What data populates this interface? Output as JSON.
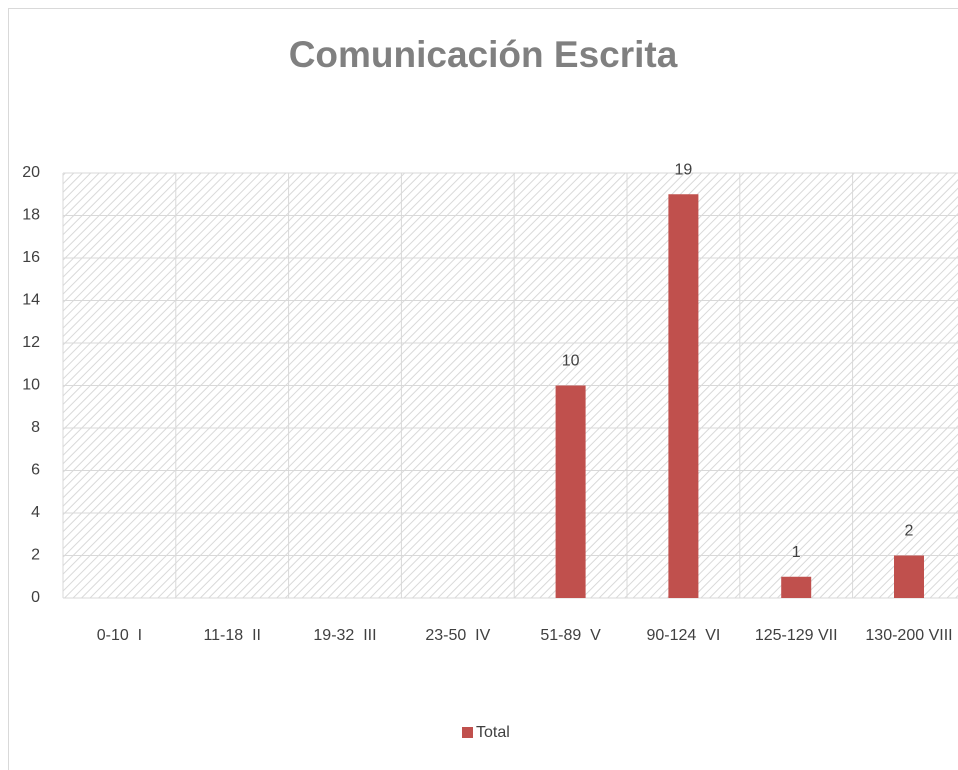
{
  "chart_data": {
    "type": "bar",
    "title": "Comunicación Escrita",
    "categories": [
      "0-10  I",
      "11-18  II",
      "19-32  III",
      "23-50  IV",
      "51-89  V",
      "90-124  VI",
      "125-129 VII",
      "130-200 VIII"
    ],
    "series": [
      {
        "name": "Total",
        "color": "#c0504d",
        "values": [
          null,
          null,
          null,
          null,
          10,
          19,
          1,
          2
        ]
      }
    ],
    "ylim": [
      0,
      20
    ],
    "yticks": [
      0,
      2,
      4,
      6,
      8,
      10,
      12,
      14,
      16,
      18,
      20
    ],
    "grid": true,
    "legend": "bottom"
  }
}
